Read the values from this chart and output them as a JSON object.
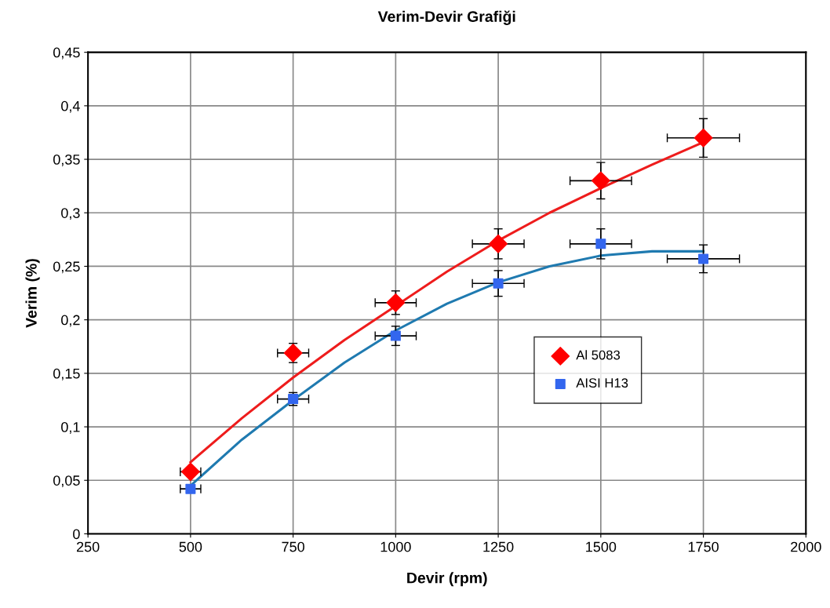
{
  "chart_data": {
    "type": "scatter",
    "title": "Verim-Devir Grafiği",
    "xlabel": "Devir (rpm)",
    "ylabel": "Verim (%)",
    "xlim": [
      250,
      2000
    ],
    "xticks": [
      250,
      500,
      750,
      1000,
      1250,
      1500,
      1750,
      2000
    ],
    "ylim": [
      0,
      0.45
    ],
    "yticks": [
      {
        "value": 0,
        "label": "0"
      },
      {
        "value": 0.05,
        "label": "0,05"
      },
      {
        "value": 0.1,
        "label": "0,1"
      },
      {
        "value": 0.15,
        "label": "0,15"
      },
      {
        "value": 0.2,
        "label": "0,2"
      },
      {
        "value": 0.25,
        "label": "0,25"
      },
      {
        "value": 0.3,
        "label": "0,3"
      },
      {
        "value": 0.35,
        "label": "0,35"
      },
      {
        "value": 0.4,
        "label": "0,4"
      },
      {
        "value": 0.45,
        "label": "0,45"
      }
    ],
    "grid": true,
    "legend": "right",
    "series": [
      {
        "type": "line",
        "color": "#ee1c1c",
        "marker": "none",
        "x": [
          500,
          625,
          750,
          875,
          1000,
          1125,
          1250,
          1375,
          1500,
          1625,
          1750
        ],
        "values": [
          0.067,
          0.108,
          0.146,
          0.181,
          0.213,
          0.245,
          0.274,
          0.3,
          0.323,
          0.345,
          0.366
        ]
      },
      {
        "type": "line",
        "color": "#1f7ab0",
        "marker": "none",
        "x": [
          500,
          625,
          750,
          875,
          1000,
          1125,
          1250,
          1375,
          1500,
          1625,
          1750
        ],
        "values": [
          0.045,
          0.088,
          0.125,
          0.16,
          0.19,
          0.215,
          0.235,
          0.25,
          0.26,
          0.264,
          0.264
        ]
      },
      {
        "name": "Al 5083",
        "color": "#ff0000",
        "marker": "diamond",
        "x": [
          500,
          750,
          1000,
          1250,
          1500,
          1750
        ],
        "values": [
          0.058,
          0.169,
          0.216,
          0.271,
          0.33,
          0.37
        ],
        "errors": [
          null,
          0.009,
          0.011,
          0.014,
          0.017,
          0.018
        ],
        "xerrors": [
          25,
          38,
          50,
          63,
          75,
          88
        ]
      },
      {
        "name": "AISI H13",
        "color": "#3366ee",
        "marker": "square",
        "x": [
          500,
          750,
          1000,
          1250,
          1500,
          1750
        ],
        "values": [
          0.042,
          0.126,
          0.185,
          0.234,
          0.271,
          0.257
        ],
        "errors": [
          null,
          0.006,
          0.009,
          0.012,
          0.014,
          0.013
        ],
        "xerrors": [
          25,
          38,
          50,
          63,
          75,
          88
        ]
      }
    ]
  }
}
